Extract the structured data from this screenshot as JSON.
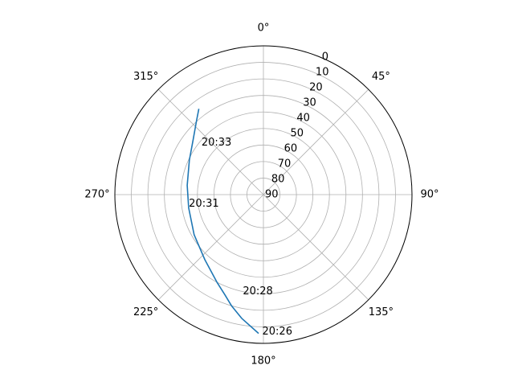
{
  "chart_data": {
    "type": "polar-line",
    "theta_zero_location": "N",
    "theta_direction": "clockwise",
    "angle_tick_labels": [
      "0°",
      "45°",
      "90°",
      "135°",
      "180°",
      "225°",
      "270°",
      "315°"
    ],
    "angle_ticks_deg": [
      0,
      45,
      90,
      135,
      180,
      225,
      270,
      315
    ],
    "radial_ticks": [
      0,
      10,
      20,
      30,
      40,
      50,
      60,
      70,
      80,
      90
    ],
    "radial_tick_labels": [
      "0",
      "10",
      "20",
      "30",
      "40",
      "50",
      "60",
      "70",
      "80",
      "90"
    ],
    "radial_axis": "elevation",
    "radial_range": [
      90,
      0
    ],
    "radial_label_angle_deg": 22.5,
    "grid": true,
    "series": [
      {
        "color": "#1f77b4",
        "points": [
          {
            "azimuth": 182,
            "elevation": 6
          },
          {
            "azimuth": 190,
            "elevation": 14
          },
          {
            "azimuth": 196,
            "elevation": 20
          },
          {
            "azimuth": 201,
            "elevation": 25
          },
          {
            "azimuth": 208,
            "elevation": 30
          },
          {
            "azimuth": 222,
            "elevation": 37
          },
          {
            "azimuth": 240,
            "elevation": 41.5
          },
          {
            "azimuth": 260,
            "elevation": 44
          },
          {
            "azimuth": 277,
            "elevation": 43.5
          },
          {
            "azimuth": 295,
            "elevation": 40.5
          },
          {
            "azimuth": 308,
            "elevation": 36
          },
          {
            "azimuth": 318,
            "elevation": 29.5
          },
          {
            "azimuth": 323,
            "elevation": 25
          }
        ]
      }
    ],
    "annotations": [
      {
        "text": "20:26",
        "azimuth": 180.5,
        "elevation": 7
      },
      {
        "text": "20:28",
        "azimuth": 192,
        "elevation": 30
      },
      {
        "text": "20:31",
        "azimuth": 263,
        "elevation": 44.5
      },
      {
        "text": "20:33",
        "azimuth": 310,
        "elevation": 41
      }
    ]
  }
}
